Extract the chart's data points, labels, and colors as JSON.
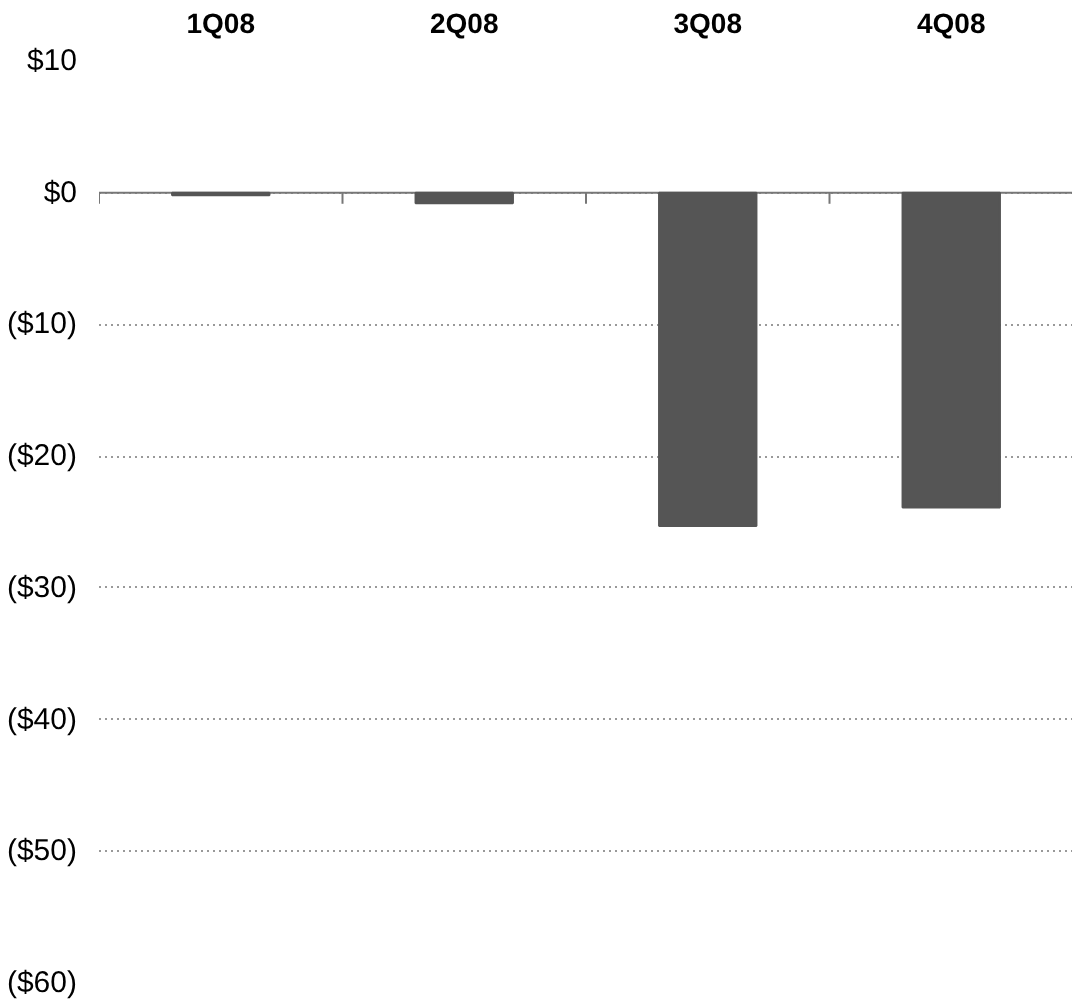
{
  "chart_data": {
    "type": "bar",
    "categories": [
      "1Q08",
      "2Q08",
      "3Q08",
      "4Q08"
    ],
    "values": [
      -0.2,
      -0.8,
      -25.3,
      -23.9
    ],
    "color": "#555555",
    "ylim": [
      -60,
      10
    ],
    "yticks": [
      {
        "value": 10,
        "label": "$10"
      },
      {
        "value": 0,
        "label": "$0"
      },
      {
        "value": -10,
        "label": "($10)"
      },
      {
        "value": -20,
        "label": "($20)"
      },
      {
        "value": -30,
        "label": "($30)"
      },
      {
        "value": -40,
        "label": "($40)"
      },
      {
        "value": -50,
        "label": "($50)"
      },
      {
        "value": -60,
        "label": "($60)"
      }
    ],
    "grid": "y"
  }
}
